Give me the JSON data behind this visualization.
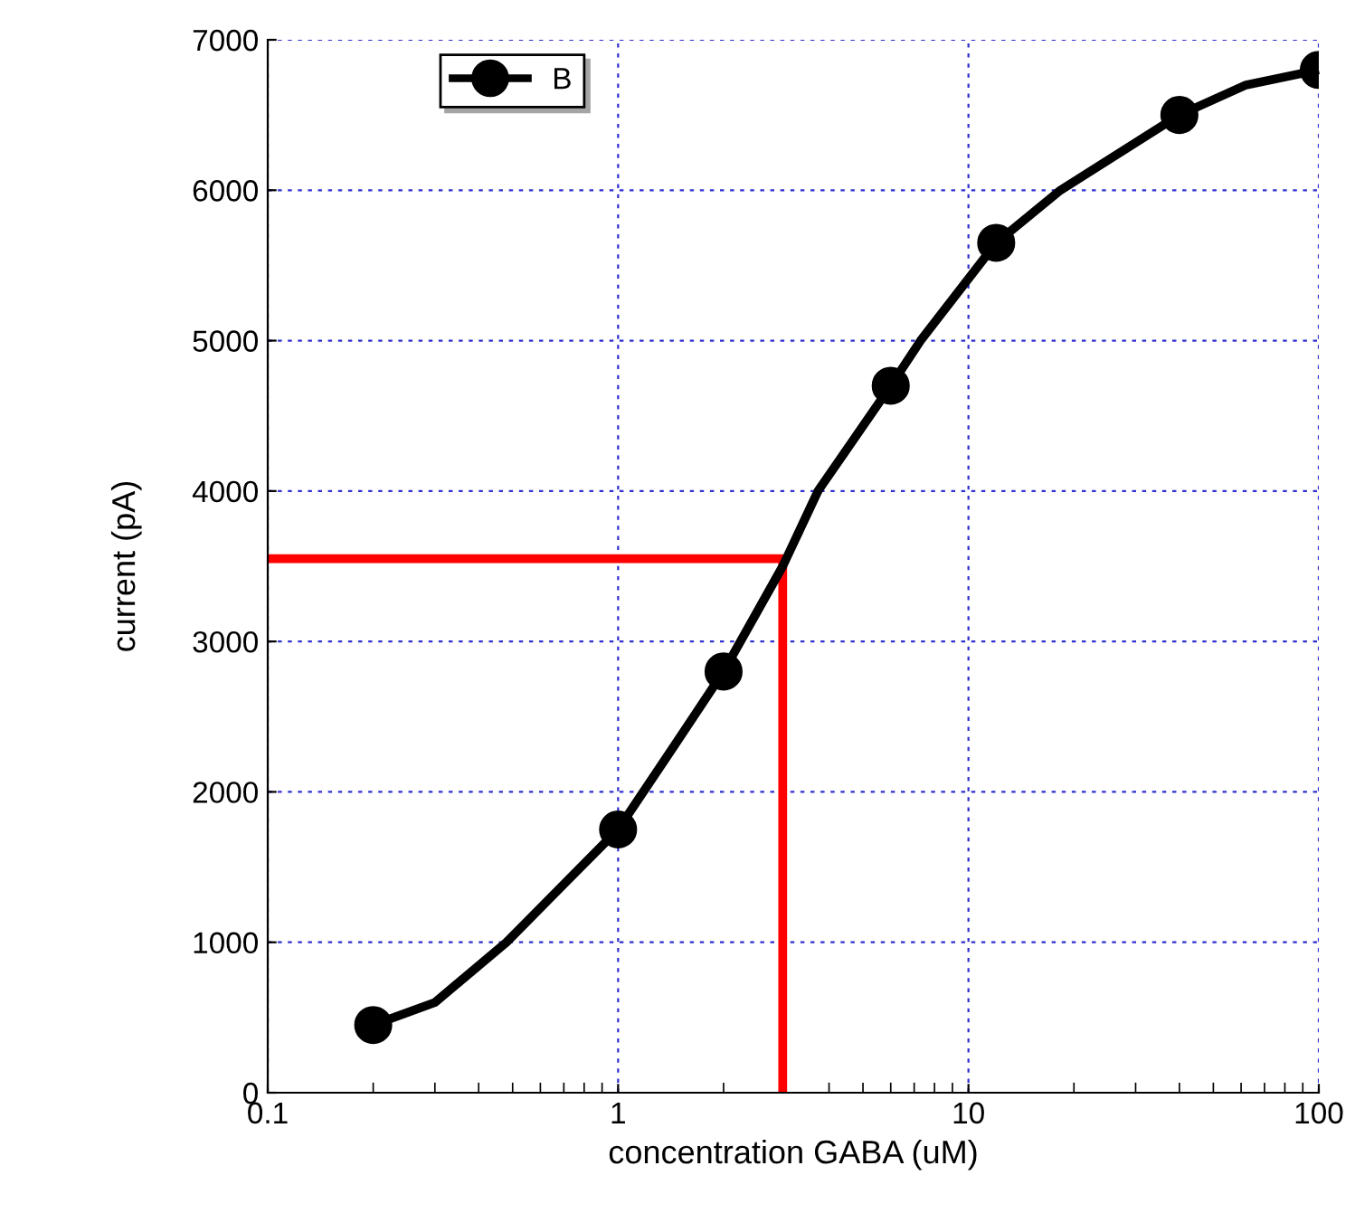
{
  "chart_data": {
    "type": "scatter",
    "xlabel": "concentration GABA (uM)",
    "ylabel": "current (pA)",
    "log": "x",
    "xlim": [
      0.1,
      100
    ],
    "xticks": [
      0.1,
      1,
      10,
      100
    ],
    "ylim": [
      0,
      7000
    ],
    "yticks": [
      0,
      1000,
      2000,
      3000,
      4000,
      5000,
      6000,
      7000
    ],
    "grid": true,
    "legend": "top left",
    "series": [
      {
        "name": "B",
        "color": "#000000",
        "marker": "circle",
        "x": [
          0.2,
          1,
          2,
          6,
          12,
          40,
          100
        ],
        "values": [
          450,
          1750,
          2800,
          4700,
          5650,
          6500,
          6800
        ]
      },
      {
        "type": "line",
        "color": "#000000",
        "line_style": "solid",
        "marker": "none",
        "x": [
          0.2,
          0.3,
          0.48,
          0.71,
          1,
          1.44,
          2,
          2.95,
          3.72,
          6,
          7.3,
          12,
          18.3,
          40,
          62,
          100
        ],
        "values": [
          450,
          600,
          1000,
          1400,
          1750,
          2300,
          2800,
          3500,
          4000,
          4700,
          5000,
          5650,
          6000,
          6500,
          6700,
          6800
        ]
      },
      {
        "type": "line",
        "color": "#ff0000",
        "line_style": "solid",
        "marker": "none",
        "x": [
          0.1,
          2.95,
          2.95
        ],
        "values": [
          3550,
          3550,
          0
        ]
      }
    ]
  }
}
